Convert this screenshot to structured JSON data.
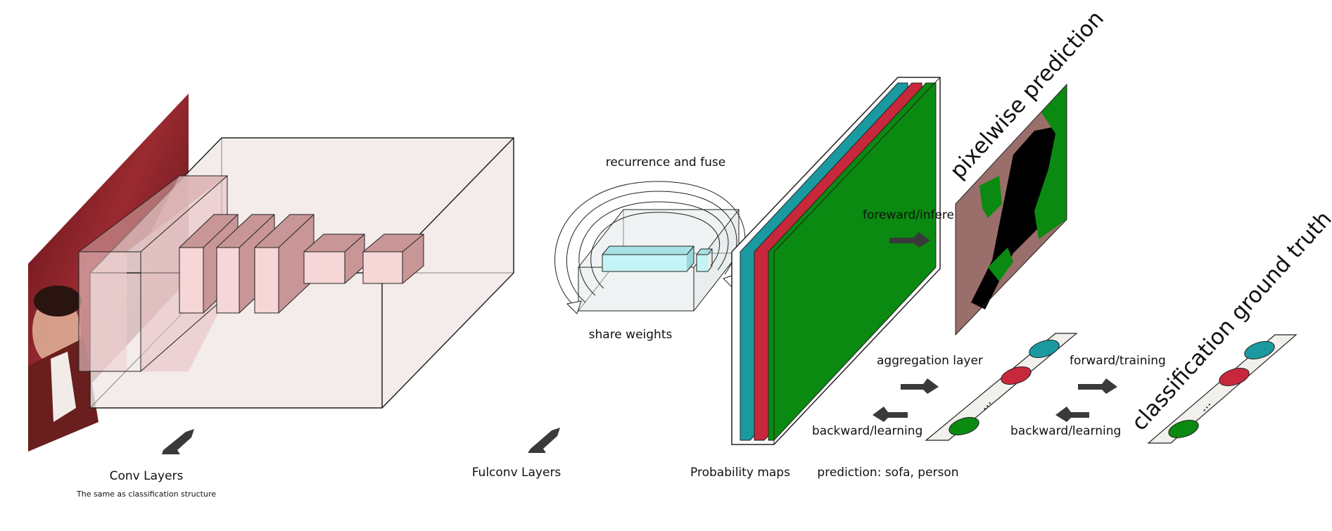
{
  "labels": {
    "conv_layers": "Conv Layers",
    "conv_note": "The same as classification structure",
    "fulconv_layers": "Fulconv Layers",
    "recurrence_fuse": "recurrence and fuse",
    "share_weights": "share weights",
    "probability_maps": "Probability maps",
    "foreward_inference": "foreward/inference",
    "pixelwise_prediction": "pixelwise prediction",
    "aggregation_layer": "aggregation layer",
    "backward_learning_left": "backward/learning",
    "forward_training": "forward/training",
    "backward_learning_right": "backward/learning",
    "prediction": "prediction: sofa, person",
    "classification_ground_truth": "classification ground truth",
    "ellipsis_pred": "...",
    "ellipsis_gt": "..."
  },
  "colors": {
    "teal": "#1a9aa0",
    "red": "#c8283c",
    "green": "#0a8a10",
    "layer_pink": "#e8c4c4",
    "volume_pink": "#f1e6e6",
    "recurrent_cyan": "#c4f4f6",
    "arrow_gray": "#3a3a3a",
    "photo_red": "#7a1a22"
  }
}
